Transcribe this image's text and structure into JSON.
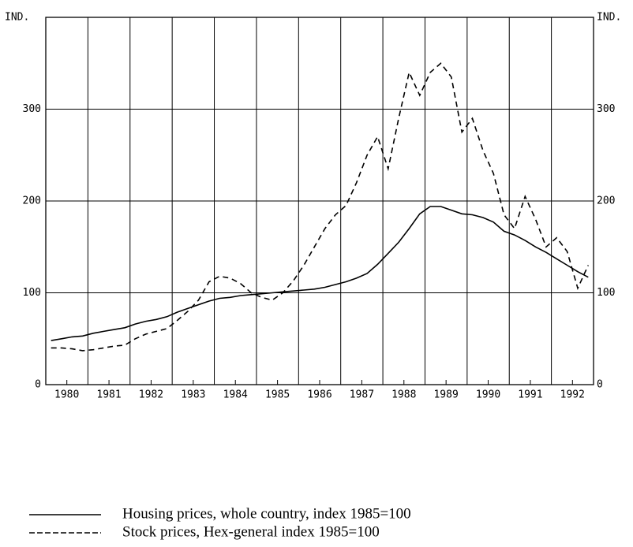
{
  "chart_data": {
    "type": "line",
    "ylabel": "IND.",
    "y2label": "IND.",
    "xlim": [
      1980,
      1993
    ],
    "xticks": [
      {
        "value": 1980.5,
        "label": "1980"
      },
      {
        "value": 1981.5,
        "label": "1981"
      },
      {
        "value": 1982.5,
        "label": "1982"
      },
      {
        "value": 1983.5,
        "label": "1983"
      },
      {
        "value": 1984.5,
        "label": "1984"
      },
      {
        "value": 1985.5,
        "label": "1985"
      },
      {
        "value": 1986.5,
        "label": "1986"
      },
      {
        "value": 1987.5,
        "label": "1987"
      },
      {
        "value": 1988.5,
        "label": "1988"
      },
      {
        "value": 1989.5,
        "label": "1989"
      },
      {
        "value": 1990.5,
        "label": "1990"
      },
      {
        "value": 1991.5,
        "label": "1991"
      },
      {
        "value": 1992.5,
        "label": "1992"
      }
    ],
    "xgrid": [
      1981,
      1982,
      1983,
      1984,
      1985,
      1986,
      1987,
      1988,
      1989,
      1990,
      1991,
      1992
    ],
    "ylim": [
      0,
      400
    ],
    "yticks": [
      0,
      100,
      200,
      300
    ],
    "y2lim": [
      0,
      400
    ],
    "y2ticks": [
      0,
      100,
      200,
      300
    ],
    "grid": true,
    "x": [
      1980.125,
      1980.375,
      1980.625,
      1980.875,
      1981.125,
      1981.375,
      1981.625,
      1981.875,
      1982.125,
      1982.375,
      1982.625,
      1982.875,
      1983.125,
      1983.375,
      1983.625,
      1983.875,
      1984.125,
      1984.375,
      1984.625,
      1984.875,
      1985.125,
      1985.375,
      1985.625,
      1985.875,
      1986.125,
      1986.375,
      1986.625,
      1986.875,
      1987.125,
      1987.375,
      1987.625,
      1987.875,
      1988.125,
      1988.375,
      1988.625,
      1988.875,
      1989.125,
      1989.375,
      1989.625,
      1989.875,
      1990.125,
      1990.375,
      1990.625,
      1990.875,
      1991.125,
      1991.375,
      1991.625,
      1991.875,
      1992.125,
      1992.375,
      1992.625,
      1992.875
    ],
    "series": [
      {
        "name": "Housing prices, whole country, index 1985=100",
        "color": "#000000",
        "dash": "solid",
        "values": [
          48,
          50,
          52,
          53,
          56,
          58,
          60,
          62,
          66,
          69,
          71,
          74,
          79,
          83,
          87,
          91,
          94,
          95,
          97,
          98,
          99,
          100,
          101,
          102,
          103,
          104,
          106,
          109,
          112,
          116,
          121,
          131,
          143,
          155,
          170,
          186,
          194,
          194,
          190,
          186,
          185,
          182,
          177,
          167,
          163,
          157,
          150,
          144,
          137,
          130,
          123,
          117
        ]
      },
      {
        "name": "Stock prices, Hex-general index 1985=100",
        "color": "#000000",
        "dash": "dashed",
        "values": [
          40,
          40,
          39,
          37,
          38,
          40,
          42,
          43,
          50,
          55,
          58,
          61,
          70,
          80,
          92,
          112,
          118,
          116,
          110,
          100,
          95,
          92,
          100,
          113,
          130,
          150,
          170,
          185,
          195,
          220,
          250,
          270,
          235,
          290,
          340,
          315,
          340,
          350,
          335,
          275,
          290,
          255,
          230,
          185,
          170,
          205,
          180,
          150,
          160,
          145,
          105,
          130
        ]
      }
    ]
  }
}
